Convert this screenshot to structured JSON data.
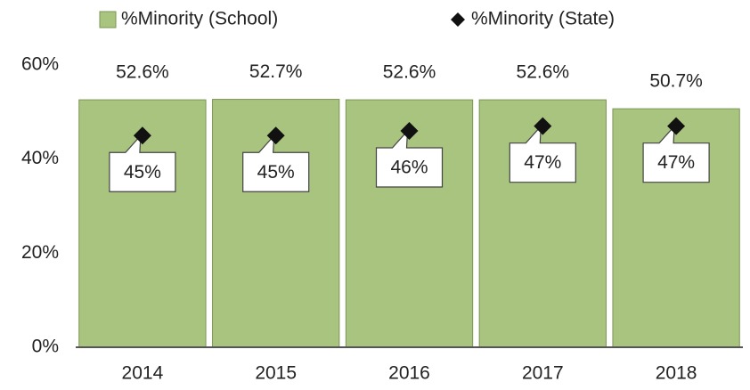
{
  "chart_data": {
    "type": "bar",
    "categories": [
      "2014",
      "2015",
      "2016",
      "2017",
      "2018"
    ],
    "series": [
      {
        "name": "%Minority (School)",
        "type": "bar",
        "color": "#a9c47f",
        "values": [
          52.6,
          52.7,
          52.6,
          52.6,
          50.7
        ],
        "value_labels": [
          "52.6%",
          "52.7%",
          "52.6%",
          "52.6%",
          "50.7%"
        ]
      },
      {
        "name": "%Minority (State)",
        "type": "scatter",
        "marker": "diamond",
        "color": "#111111",
        "values": [
          45,
          45,
          46,
          47,
          47
        ],
        "value_labels": [
          "45%",
          "45%",
          "46%",
          "47%",
          "47%"
        ]
      }
    ],
    "ylim": [
      0,
      60
    ],
    "yticks": [
      {
        "value": 0,
        "label": "0%"
      },
      {
        "value": 20,
        "label": "20%"
      },
      {
        "value": 40,
        "label": "40%"
      },
      {
        "value": 60,
        "label": "60%"
      }
    ],
    "legend": "top"
  }
}
